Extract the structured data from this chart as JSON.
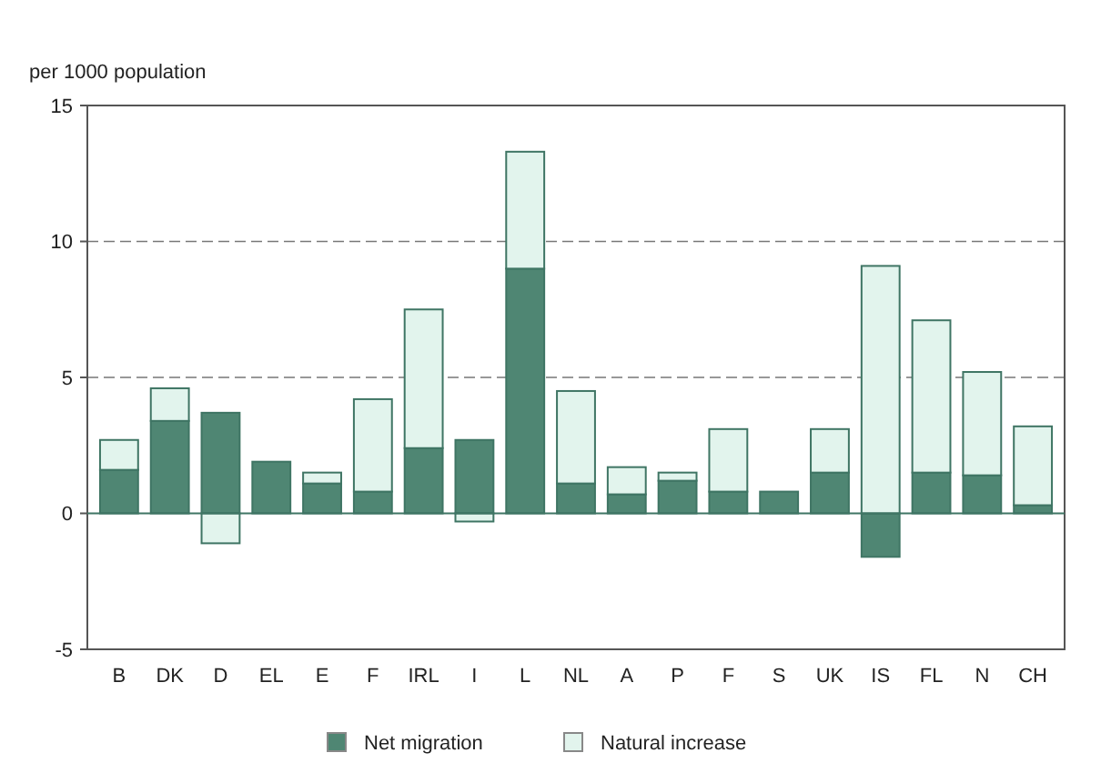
{
  "chart_data": {
    "type": "bar",
    "stacked": true,
    "ylabel": "per 1000 population",
    "categories": [
      "B",
      "DK",
      "D",
      "EL",
      "E",
      "F",
      "IRL",
      "I",
      "L",
      "NL",
      "A",
      "P",
      "F",
      "S",
      "UK",
      "IS",
      "FL",
      "N",
      "CH"
    ],
    "series": [
      {
        "name": "Net migration",
        "color": "#4f8673",
        "values": [
          1.6,
          3.4,
          3.7,
          1.9,
          1.1,
          0.8,
          2.4,
          2.7,
          9.0,
          1.1,
          0.7,
          1.2,
          0.8,
          0.8,
          1.5,
          -1.6,
          1.5,
          1.4,
          0.3
        ]
      },
      {
        "name": "Natural increase",
        "color": "#e2f4ed",
        "values": [
          1.1,
          1.2,
          -1.1,
          0,
          0.4,
          3.4,
          5.1,
          -0.3,
          4.3,
          3.4,
          1.0,
          0.3,
          2.3,
          0,
          1.6,
          9.1,
          5.6,
          3.8,
          2.9
        ]
      }
    ],
    "ylim": [
      -5,
      15
    ],
    "yticks": [
      -5,
      0,
      5,
      10,
      15
    ],
    "ref_lines": [
      {
        "axis": "y",
        "value": 0,
        "color": "#3f7564"
      }
    ],
    "grid": "y",
    "legend": "bottom"
  }
}
